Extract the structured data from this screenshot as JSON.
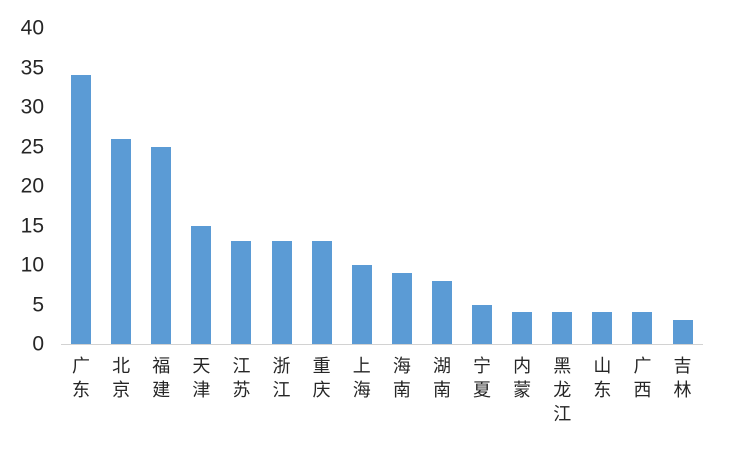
{
  "chart_data": {
    "type": "bar",
    "categories": [
      "广东",
      "北京",
      "福建",
      "天津",
      "江苏",
      "浙江",
      "重庆",
      "上海",
      "海南",
      "湖南",
      "宁夏",
      "内蒙",
      "黑龙江",
      "山东",
      "广西",
      "吉林"
    ],
    "values": [
      34,
      26,
      25,
      15,
      13,
      13,
      13,
      10,
      9,
      8,
      5,
      4,
      4,
      4,
      4,
      3
    ],
    "title": "",
    "xlabel": "",
    "ylabel": "",
    "ylim": [
      0,
      40
    ],
    "yticks": [
      0,
      5,
      10,
      15,
      20,
      25,
      30,
      35,
      40
    ],
    "grid": false,
    "legend_position": "none",
    "bar_color": "#5B9BD5",
    "axis_line_color": "#D2D2D2",
    "tick_text_color": "#262626"
  }
}
